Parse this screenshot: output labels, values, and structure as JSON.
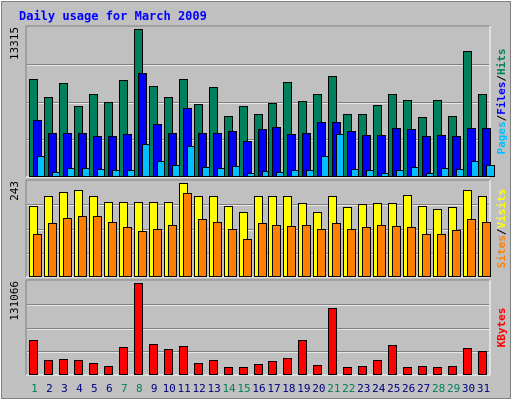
{
  "chart_data": {
    "type": "bar",
    "title": "Daily usage for March 2009",
    "days": [
      "1",
      "2",
      "3",
      "4",
      "5",
      "6",
      "7",
      "8",
      "9",
      "10",
      "11",
      "12",
      "13",
      "14",
      "15",
      "16",
      "17",
      "18",
      "19",
      "20",
      "21",
      "22",
      "23",
      "24",
      "25",
      "26",
      "27",
      "28",
      "29",
      "30",
      "31"
    ],
    "weekend_days": [
      "1",
      "7",
      "8",
      "14",
      "15",
      "21",
      "22",
      "28",
      "29"
    ],
    "top_panel": {
      "ymax_label": "13315",
      "ymax": 13315,
      "series": [
        {
          "name": "Hits",
          "color": "#00805c",
          "values": [
            8780,
            7190,
            8450,
            6380,
            7480,
            6790,
            8690,
            13315,
            8160,
            7190,
            8850,
            6610,
            8090,
            5470,
            6380,
            5640,
            6690,
            8570,
            6800,
            7500,
            9130,
            5690,
            5710,
            6440,
            7480,
            6950,
            5430,
            6940,
            5480,
            11300,
            7480
          ]
        },
        {
          "name": "Files",
          "color": "#0000ff",
          "values": [
            5140,
            3930,
            3990,
            4000,
            3730,
            3710,
            3870,
            9380,
            4780,
            3960,
            6200,
            3960,
            3970,
            4150,
            3230,
            4330,
            4490,
            3830,
            3950,
            4930,
            4960,
            4120,
            3740,
            3800,
            4420,
            4350,
            3670,
            3820,
            3720,
            4390,
            4420
          ]
        },
        {
          "name": "Pages",
          "color": "#00c0ff",
          "values": [
            1850,
            490,
            820,
            850,
            690,
            590,
            660,
            2990,
            1480,
            1100,
            2780,
            910,
            780,
            1000,
            370,
            510,
            470,
            620,
            600,
            1860,
            3860,
            700,
            600,
            380,
            600,
            880,
            380,
            840,
            750,
            1410,
            1110
          ]
        }
      ]
    },
    "middle_panel": {
      "ymax_label": "243",
      "ymax": 243,
      "series": [
        {
          "name": "Visits",
          "color": "#ffff00",
          "values": [
            183,
            210,
            220,
            224,
            210,
            195,
            195,
            195,
            195,
            195,
            243,
            210,
            210,
            183,
            167,
            210,
            210,
            210,
            191,
            169,
            210,
            182,
            188,
            192,
            192,
            211,
            183,
            176,
            182,
            225,
            210
          ]
        },
        {
          "name": "Sites",
          "color": "#ff8000",
          "values": [
            112,
            140,
            152,
            157,
            157,
            142,
            128,
            120,
            123,
            135,
            218,
            150,
            142,
            123,
            99,
            139,
            134,
            131,
            135,
            123,
            139,
            123,
            128,
            134,
            132,
            128,
            112,
            111,
            121,
            150,
            142
          ]
        }
      ]
    },
    "bottom_panel": {
      "ymax_label": "131066",
      "ymax": 131066,
      "series": [
        {
          "name": "KBytes",
          "color": "#ff0000",
          "values": [
            49280,
            21320,
            22330,
            21840,
            16570,
            13240,
            39640,
            131066,
            44730,
            37500,
            41190,
            17450,
            21270,
            10710,
            10710,
            15200,
            19290,
            24270,
            50520,
            13650,
            95410,
            11000,
            13040,
            20840,
            42980,
            11860,
            12370,
            11800,
            12120,
            38940,
            34000
          ]
        }
      ]
    },
    "right_labels": {
      "top": [
        "Pages",
        "/",
        "Files",
        "/",
        "Hits"
      ],
      "middle": [
        "Sites",
        "/",
        "Visits"
      ],
      "bottom": [
        "KBytes"
      ]
    },
    "colors": {
      "background": "#c0c0c0",
      "title": "#0000ff",
      "axis_label": "#000000",
      "day_label": "#000080",
      "weekend_day_label": "#00805c",
      "separator": "#000000"
    },
    "grid": true
  }
}
